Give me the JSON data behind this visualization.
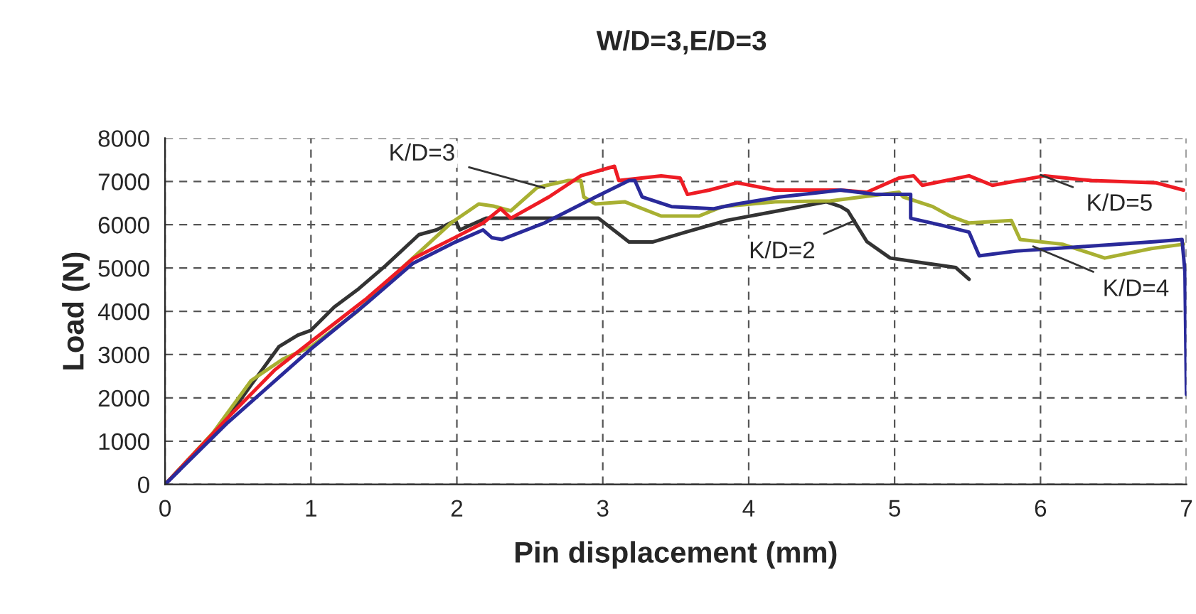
{
  "chart_data": {
    "type": "line",
    "title": "W/D=3,E/D=3",
    "xlabel": "Pin displacement (mm)",
    "ylabel": "Load (N)",
    "xlim": [
      0,
      7
    ],
    "xticks": [
      0,
      1,
      2,
      3,
      4,
      5,
      6,
      7
    ],
    "ylim": [
      0,
      8000
    ],
    "yticks": [
      0,
      1000,
      2000,
      3000,
      4000,
      5000,
      6000,
      7000,
      8000
    ],
    "grid": true,
    "line_style": "solid",
    "marker": "none",
    "series": [
      {
        "color": "#333333",
        "x": [
          0,
          0.43,
          0.59,
          0.78,
          0.91,
          1.0,
          1.16,
          1.32,
          1.51,
          1.74,
          1.86,
          1.99,
          2.02,
          2.2,
          2.97,
          3.18,
          3.34,
          3.56,
          3.85,
          4.2,
          4.53,
          4.63,
          4.68,
          4.74,
          4.81,
          4.97,
          5.19,
          5.42,
          5.51
        ],
        "values": [
          0,
          1540,
          2300,
          3180,
          3450,
          3560,
          4100,
          4500,
          5050,
          5770,
          5880,
          6100,
          5880,
          6150,
          6150,
          5600,
          5600,
          5820,
          6100,
          6320,
          6530,
          6420,
          6320,
          5990,
          5610,
          5230,
          5120,
          5010,
          4740
        ]
      },
      {
        "color": "#a8b032",
        "x": [
          0,
          0.33,
          0.59,
          0.81,
          1.0,
          1.32,
          1.64,
          1.96,
          2.15,
          2.25,
          2.37,
          2.55,
          2.76,
          2.85,
          2.87,
          2.95,
          3.15,
          3.4,
          3.66,
          3.82,
          4.18,
          4.56,
          5.03,
          5.06,
          5.26,
          5.38,
          5.51,
          5.8,
          5.86,
          6.15,
          6.44,
          6.76,
          6.98
        ],
        "values": [
          0,
          1200,
          2400,
          2900,
          3180,
          4000,
          5050,
          6040,
          6480,
          6430,
          6320,
          6860,
          7020,
          7020,
          6640,
          6480,
          6530,
          6200,
          6200,
          6420,
          6530,
          6550,
          6750,
          6640,
          6420,
          6200,
          6040,
          6100,
          5660,
          5550,
          5230,
          5450,
          5550
        ]
      },
      {
        "color": "#ee1c24",
        "x": [
          0,
          0.43,
          0.75,
          1.0,
          1.38,
          1.7,
          1.99,
          2.18,
          2.3,
          2.37,
          2.63,
          2.85,
          3.08,
          3.11,
          3.4,
          3.53,
          3.58,
          3.73,
          3.92,
          4.18,
          4.37,
          4.63,
          4.81,
          5.03,
          5.13,
          5.19,
          5.51,
          5.67,
          6.03,
          6.35,
          6.79,
          6.98
        ],
        "values": [
          0,
          1540,
          2640,
          3300,
          4290,
          5220,
          5710,
          6040,
          6370,
          6150,
          6640,
          7130,
          7350,
          7020,
          7130,
          7080,
          6700,
          6800,
          6970,
          6800,
          6800,
          6800,
          6750,
          7080,
          7130,
          6910,
          7130,
          6910,
          7130,
          7020,
          6970,
          6800
        ]
      },
      {
        "color": "#2a2a9a",
        "x": [
          0,
          0.43,
          1.0,
          1.38,
          1.7,
          1.99,
          2.18,
          2.24,
          2.31,
          2.6,
          2.95,
          3.18,
          3.22,
          3.27,
          3.47,
          3.76,
          3.92,
          4.21,
          4.63,
          4.87,
          5.11,
          5.11,
          5.32,
          5.51,
          5.58,
          5.83,
          6.31,
          6.79,
          6.97,
          6.99,
          7.0
        ],
        "values": [
          0,
          1430,
          3130,
          4180,
          5110,
          5600,
          5880,
          5700,
          5660,
          6040,
          6640,
          7020,
          7020,
          6640,
          6420,
          6370,
          6480,
          6640,
          6800,
          6700,
          6700,
          6150,
          5990,
          5830,
          5280,
          5390,
          5500,
          5610,
          5660,
          4900,
          2080
        ]
      }
    ],
    "annotations": [
      {
        "text": "K/D=3",
        "x": 2.6,
        "y": 6850
      },
      {
        "text": "K/D=2",
        "x": 4.73,
        "y": 6100
      },
      {
        "text": "K/D=5",
        "x": 6.0,
        "y": 7150
      },
      {
        "text": "K/D=4",
        "x": 5.95,
        "y": 5500
      }
    ]
  }
}
